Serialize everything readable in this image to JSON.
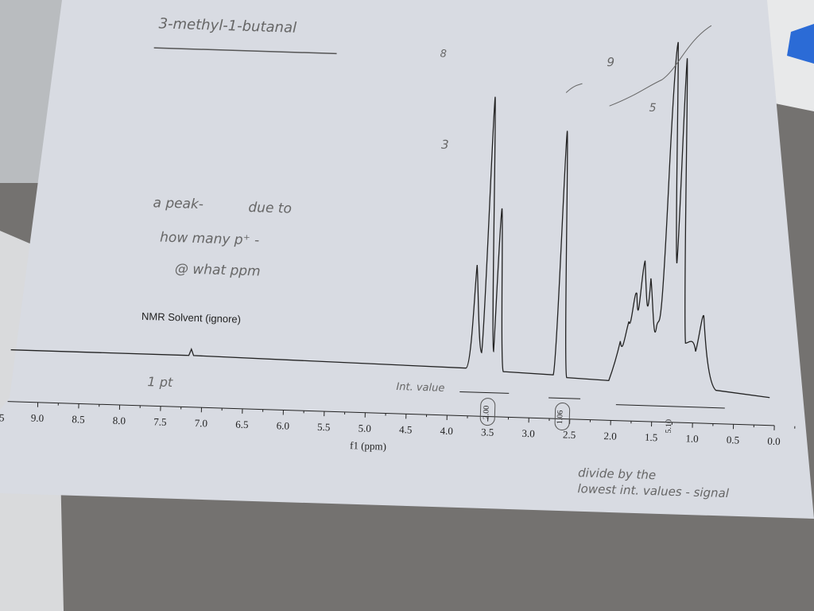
{
  "header": {
    "title": "3-methyl-1-butanal"
  },
  "notes": [
    "a peak-",
    "due to",
    "how many p⁺ -",
    "@ what ppm"
  ],
  "spectrum": {
    "solvent_label": "NMR Solvent (ignore)",
    "axis_label": "f1 (ppm)",
    "left_cut": "5",
    "ticks": [
      "9.0",
      "8.5",
      "8.0",
      "7.5",
      "7.0",
      "6.5",
      "6.0",
      "5.5",
      "5.0",
      "4.5",
      "4.0",
      "3.5",
      "3.0",
      "2.5",
      "2.0",
      "1.5",
      "1.0",
      "0.5",
      "0.0"
    ],
    "integrals": [
      "2.00",
      "1.06",
      "5.10"
    ]
  },
  "annotations": {
    "one_pt": "1 pt",
    "int_value": "Int. value",
    "divide_1": "divide by the",
    "divide_2": "lowest int. values - signal",
    "margin_8": "8",
    "margin_9": "9",
    "margin_3": "3",
    "margin_5": "5"
  }
}
